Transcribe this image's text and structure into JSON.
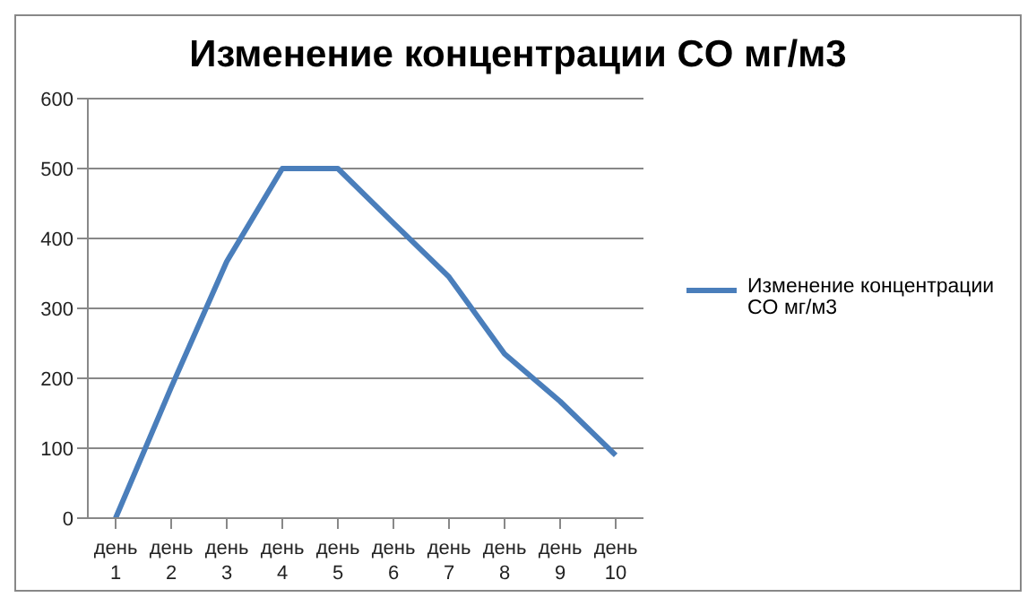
{
  "chart_data": {
    "type": "line",
    "title": "Изменение концентрации CO мг/м3",
    "categories": [
      "день 1",
      "день 2",
      "день 3",
      "день 4",
      "день 5",
      "день 6",
      "день 7",
      "день 8",
      "день 9",
      "день 10"
    ],
    "series": [
      {
        "name": "Изменение концентрации CO мг/м3",
        "color": "#4a7ebb",
        "values": [
          0,
          187,
          367,
          500,
          500,
          422,
          345,
          235,
          167,
          90
        ]
      }
    ],
    "ylim": [
      0,
      600
    ],
    "yticks": [
      0,
      100,
      200,
      300,
      400,
      500,
      600
    ],
    "grid": "y",
    "legend": "right",
    "marker": "none",
    "line_style": "solid"
  }
}
